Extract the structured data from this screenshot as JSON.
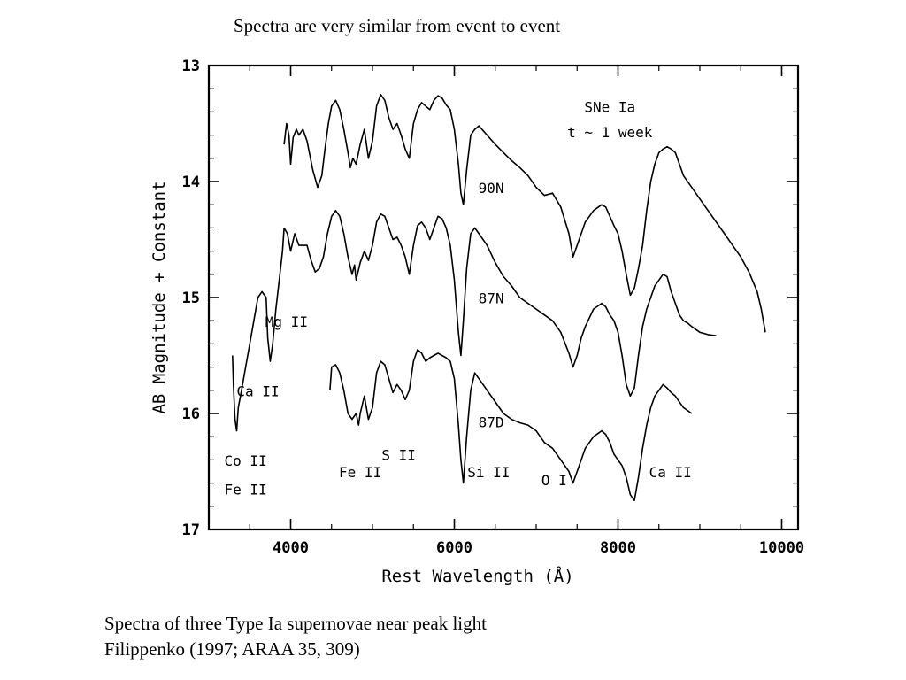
{
  "slide": {
    "title": "Spectra are very similar from event to event",
    "caption_line1": "Spectra of three Type Ia supernovae near peak light",
    "caption_line2": "Filippenko (1997; ARAA 35, 309)"
  },
  "chart_data": {
    "type": "line",
    "xlabel": "Rest Wavelength (Å)",
    "ylabel": "AB Magnitude + Constant",
    "xlim": [
      3000,
      10200
    ],
    "ylim": [
      17,
      13
    ],
    "y_inverted": true,
    "x_ticks": [
      4000,
      6000,
      8000,
      10000
    ],
    "x_tick_labels": [
      "4000",
      "6000",
      "8000",
      "10000"
    ],
    "y_ticks": [
      13,
      14,
      15,
      16,
      17
    ],
    "y_tick_labels": [
      "13",
      "14",
      "15",
      "16",
      "17"
    ],
    "line_color": "#000000",
    "series": [
      {
        "name": "90N",
        "points": [
          [
            3920,
            13.68
          ],
          [
            3950,
            13.5
          ],
          [
            3980,
            13.6
          ],
          [
            4000,
            13.85
          ],
          [
            4030,
            13.62
          ],
          [
            4070,
            13.55
          ],
          [
            4100,
            13.6
          ],
          [
            4150,
            13.55
          ],
          [
            4200,
            13.65
          ],
          [
            4270,
            13.9
          ],
          [
            4330,
            14.05
          ],
          [
            4380,
            13.95
          ],
          [
            4420,
            13.72
          ],
          [
            4460,
            13.5
          ],
          [
            4500,
            13.35
          ],
          [
            4550,
            13.3
          ],
          [
            4600,
            13.38
          ],
          [
            4650,
            13.55
          ],
          [
            4700,
            13.75
          ],
          [
            4730,
            13.88
          ],
          [
            4760,
            13.8
          ],
          [
            4800,
            13.85
          ],
          [
            4850,
            13.68
          ],
          [
            4900,
            13.55
          ],
          [
            4950,
            13.8
          ],
          [
            5000,
            13.65
          ],
          [
            5050,
            13.35
          ],
          [
            5100,
            13.25
          ],
          [
            5150,
            13.3
          ],
          [
            5200,
            13.45
          ],
          [
            5250,
            13.55
          ],
          [
            5300,
            13.5
          ],
          [
            5350,
            13.6
          ],
          [
            5400,
            13.72
          ],
          [
            5450,
            13.8
          ],
          [
            5500,
            13.5
          ],
          [
            5550,
            13.38
          ],
          [
            5600,
            13.32
          ],
          [
            5650,
            13.35
          ],
          [
            5700,
            13.38
          ],
          [
            5750,
            13.3
          ],
          [
            5800,
            13.26
          ],
          [
            5850,
            13.28
          ],
          [
            5900,
            13.34
          ],
          [
            5950,
            13.38
          ],
          [
            6000,
            13.55
          ],
          [
            6050,
            13.85
          ],
          [
            6080,
            14.1
          ],
          [
            6110,
            14.2
          ],
          [
            6150,
            13.9
          ],
          [
            6200,
            13.6
          ],
          [
            6250,
            13.55
          ],
          [
            6300,
            13.52
          ],
          [
            6400,
            13.6
          ],
          [
            6500,
            13.68
          ],
          [
            6600,
            13.75
          ],
          [
            6700,
            13.82
          ],
          [
            6800,
            13.88
          ],
          [
            6900,
            13.95
          ],
          [
            7000,
            14.05
          ],
          [
            7100,
            14.12
          ],
          [
            7200,
            14.1
          ],
          [
            7300,
            14.22
          ],
          [
            7400,
            14.45
          ],
          [
            7450,
            14.65
          ],
          [
            7500,
            14.55
          ],
          [
            7550,
            14.45
          ],
          [
            7600,
            14.35
          ],
          [
            7700,
            14.25
          ],
          [
            7800,
            14.2
          ],
          [
            7850,
            14.22
          ],
          [
            7900,
            14.3
          ],
          [
            7950,
            14.38
          ],
          [
            8000,
            14.45
          ],
          [
            8050,
            14.6
          ],
          [
            8100,
            14.8
          ],
          [
            8150,
            14.98
          ],
          [
            8200,
            14.92
          ],
          [
            8250,
            14.75
          ],
          [
            8300,
            14.55
          ],
          [
            8350,
            14.25
          ],
          [
            8400,
            14.0
          ],
          [
            8450,
            13.85
          ],
          [
            8500,
            13.75
          ],
          [
            8550,
            13.72
          ],
          [
            8600,
            13.7
          ],
          [
            8650,
            13.72
          ],
          [
            8700,
            13.75
          ],
          [
            8750,
            13.85
          ],
          [
            8800,
            13.95
          ],
          [
            8900,
            14.05
          ],
          [
            9000,
            14.15
          ],
          [
            9100,
            14.25
          ],
          [
            9200,
            14.35
          ],
          [
            9300,
            14.45
          ],
          [
            9400,
            14.55
          ],
          [
            9500,
            14.65
          ],
          [
            9600,
            14.78
          ],
          [
            9700,
            14.95
          ],
          [
            9750,
            15.1
          ],
          [
            9800,
            15.3
          ]
        ]
      },
      {
        "name": "87N",
        "points": [
          [
            3920,
            14.4
          ],
          [
            3960,
            14.45
          ],
          [
            4000,
            14.6
          ],
          [
            4050,
            14.45
          ],
          [
            4100,
            14.55
          ],
          [
            4200,
            14.55
          ],
          [
            4250,
            14.68
          ],
          [
            4300,
            14.78
          ],
          [
            4350,
            14.75
          ],
          [
            4400,
            14.65
          ],
          [
            4450,
            14.45
          ],
          [
            4500,
            14.3
          ],
          [
            4550,
            14.25
          ],
          [
            4600,
            14.3
          ],
          [
            4650,
            14.45
          ],
          [
            4700,
            14.65
          ],
          [
            4750,
            14.8
          ],
          [
            4780,
            14.72
          ],
          [
            4800,
            14.85
          ],
          [
            4850,
            14.7
          ],
          [
            4900,
            14.6
          ],
          [
            4950,
            14.68
          ],
          [
            5000,
            14.55
          ],
          [
            5050,
            14.35
          ],
          [
            5100,
            14.28
          ],
          [
            5150,
            14.3
          ],
          [
            5200,
            14.4
          ],
          [
            5250,
            14.5
          ],
          [
            5300,
            14.48
          ],
          [
            5350,
            14.55
          ],
          [
            5400,
            14.65
          ],
          [
            5450,
            14.8
          ],
          [
            5500,
            14.55
          ],
          [
            5550,
            14.38
          ],
          [
            5600,
            14.35
          ],
          [
            5650,
            14.4
          ],
          [
            5700,
            14.5
          ],
          [
            5750,
            14.4
          ],
          [
            5800,
            14.3
          ],
          [
            5850,
            14.32
          ],
          [
            5900,
            14.4
          ],
          [
            5950,
            14.55
          ],
          [
            6000,
            14.85
          ],
          [
            6050,
            15.3
          ],
          [
            6080,
            15.5
          ],
          [
            6110,
            15.2
          ],
          [
            6150,
            14.75
          ],
          [
            6200,
            14.45
          ],
          [
            6250,
            14.4
          ],
          [
            6300,
            14.45
          ],
          [
            6400,
            14.55
          ],
          [
            6500,
            14.7
          ],
          [
            6600,
            14.82
          ],
          [
            6700,
            14.9
          ],
          [
            6800,
            15.0
          ],
          [
            6900,
            15.05
          ],
          [
            7000,
            15.1
          ],
          [
            7100,
            15.15
          ],
          [
            7200,
            15.2
          ],
          [
            7300,
            15.3
          ],
          [
            7400,
            15.48
          ],
          [
            7450,
            15.6
          ],
          [
            7500,
            15.5
          ],
          [
            7550,
            15.35
          ],
          [
            7600,
            15.25
          ],
          [
            7700,
            15.1
          ],
          [
            7800,
            15.05
          ],
          [
            7850,
            15.08
          ],
          [
            7900,
            15.15
          ],
          [
            7950,
            15.2
          ],
          [
            8000,
            15.3
          ],
          [
            8050,
            15.5
          ],
          [
            8100,
            15.75
          ],
          [
            8150,
            15.85
          ],
          [
            8200,
            15.78
          ],
          [
            8250,
            15.5
          ],
          [
            8300,
            15.25
          ],
          [
            8350,
            15.1
          ],
          [
            8400,
            15.0
          ],
          [
            8450,
            14.9
          ],
          [
            8500,
            14.85
          ],
          [
            8550,
            14.8
          ],
          [
            8600,
            14.82
          ],
          [
            8650,
            14.95
          ],
          [
            8700,
            15.05
          ],
          [
            8750,
            15.15
          ],
          [
            8800,
            15.2
          ],
          [
            8850,
            15.22
          ],
          [
            8900,
            15.25
          ],
          [
            9000,
            15.3
          ],
          [
            9100,
            15.32
          ],
          [
            9200,
            15.33
          ]
        ]
      },
      {
        "name": "87D",
        "points": [
          [
            4480,
            15.8
          ],
          [
            4500,
            15.6
          ],
          [
            4550,
            15.58
          ],
          [
            4600,
            15.65
          ],
          [
            4650,
            15.8
          ],
          [
            4700,
            16.0
          ],
          [
            4750,
            16.05
          ],
          [
            4800,
            16.0
          ],
          [
            4830,
            16.1
          ],
          [
            4850,
            16.0
          ],
          [
            4900,
            15.85
          ],
          [
            4950,
            16.05
          ],
          [
            5000,
            15.95
          ],
          [
            5050,
            15.65
          ],
          [
            5100,
            15.55
          ],
          [
            5150,
            15.58
          ],
          [
            5200,
            15.7
          ],
          [
            5250,
            15.82
          ],
          [
            5300,
            15.75
          ],
          [
            5350,
            15.8
          ],
          [
            5400,
            15.88
          ],
          [
            5450,
            15.8
          ],
          [
            5500,
            15.55
          ],
          [
            5550,
            15.45
          ],
          [
            5600,
            15.48
          ],
          [
            5650,
            15.55
          ],
          [
            5700,
            15.52
          ],
          [
            5750,
            15.5
          ],
          [
            5800,
            15.48
          ],
          [
            5850,
            15.5
          ],
          [
            5900,
            15.52
          ],
          [
            5950,
            15.55
          ],
          [
            6000,
            15.7
          ],
          [
            6050,
            16.1
          ],
          [
            6080,
            16.4
          ],
          [
            6110,
            16.6
          ],
          [
            6150,
            16.2
          ],
          [
            6200,
            15.8
          ],
          [
            6250,
            15.65
          ],
          [
            6300,
            15.7
          ],
          [
            6400,
            15.8
          ],
          [
            6500,
            15.9
          ],
          [
            6600,
            16.0
          ],
          [
            6700,
            16.05
          ],
          [
            6800,
            16.08
          ],
          [
            6900,
            16.1
          ],
          [
            7000,
            16.15
          ],
          [
            7100,
            16.25
          ],
          [
            7200,
            16.3
          ],
          [
            7300,
            16.4
          ],
          [
            7400,
            16.5
          ],
          [
            7450,
            16.6
          ],
          [
            7500,
            16.5
          ],
          [
            7550,
            16.4
          ],
          [
            7600,
            16.3
          ],
          [
            7700,
            16.2
          ],
          [
            7800,
            16.15
          ],
          [
            7850,
            16.18
          ],
          [
            7900,
            16.25
          ],
          [
            7950,
            16.35
          ],
          [
            8000,
            16.4
          ],
          [
            8050,
            16.45
          ],
          [
            8100,
            16.55
          ],
          [
            8150,
            16.7
          ],
          [
            8200,
            16.75
          ],
          [
            8250,
            16.55
          ],
          [
            8300,
            16.3
          ],
          [
            8350,
            16.1
          ],
          [
            8400,
            15.95
          ],
          [
            8450,
            15.85
          ],
          [
            8500,
            15.8
          ],
          [
            8550,
            15.75
          ],
          [
            8600,
            15.78
          ],
          [
            8650,
            15.82
          ],
          [
            8700,
            15.85
          ],
          [
            8750,
            15.9
          ],
          [
            8800,
            15.95
          ],
          [
            8900,
            16.0
          ]
        ]
      },
      {
        "name": "",
        "points": [
          [
            3290,
            15.5
          ],
          [
            3300,
            15.75
          ],
          [
            3320,
            16.05
          ],
          [
            3340,
            16.15
          ],
          [
            3360,
            15.95
          ],
          [
            3400,
            15.8
          ],
          [
            3450,
            15.6
          ],
          [
            3500,
            15.4
          ],
          [
            3550,
            15.2
          ],
          [
            3600,
            15.0
          ],
          [
            3650,
            14.95
          ],
          [
            3700,
            15.0
          ],
          [
            3720,
            15.35
          ],
          [
            3750,
            15.55
          ],
          [
            3780,
            15.4
          ],
          [
            3820,
            15.1
          ],
          [
            3860,
            14.85
          ],
          [
            3900,
            14.6
          ],
          [
            3920,
            14.4
          ]
        ]
      }
    ],
    "annotations": [
      {
        "text": "SNe Ia",
        "x": 7900,
        "y": 13.4
      },
      {
        "text": "t ~ 1 week",
        "x": 7900,
        "y": 13.62
      },
      {
        "text": "90N",
        "x": 6450,
        "y": 14.1
      },
      {
        "text": "87N",
        "x": 6450,
        "y": 15.05
      },
      {
        "text": "87D",
        "x": 6450,
        "y": 16.12
      },
      {
        "text": "Mg II",
        "x": 3950,
        "y": 15.25
      },
      {
        "text": "Ca II",
        "x": 3600,
        "y": 15.85
      },
      {
        "text": "Co II",
        "x": 3450,
        "y": 16.45
      },
      {
        "text": "Fe II",
        "x": 3450,
        "y": 16.7
      },
      {
        "text": "Fe II",
        "x": 4850,
        "y": 16.55
      },
      {
        "text": "S II",
        "x": 5320,
        "y": 16.4
      },
      {
        "text": "Si II",
        "x": 6420,
        "y": 16.55
      },
      {
        "text": "O I",
        "x": 7220,
        "y": 16.62
      },
      {
        "text": "Ca II",
        "x": 8640,
        "y": 16.55
      }
    ]
  }
}
